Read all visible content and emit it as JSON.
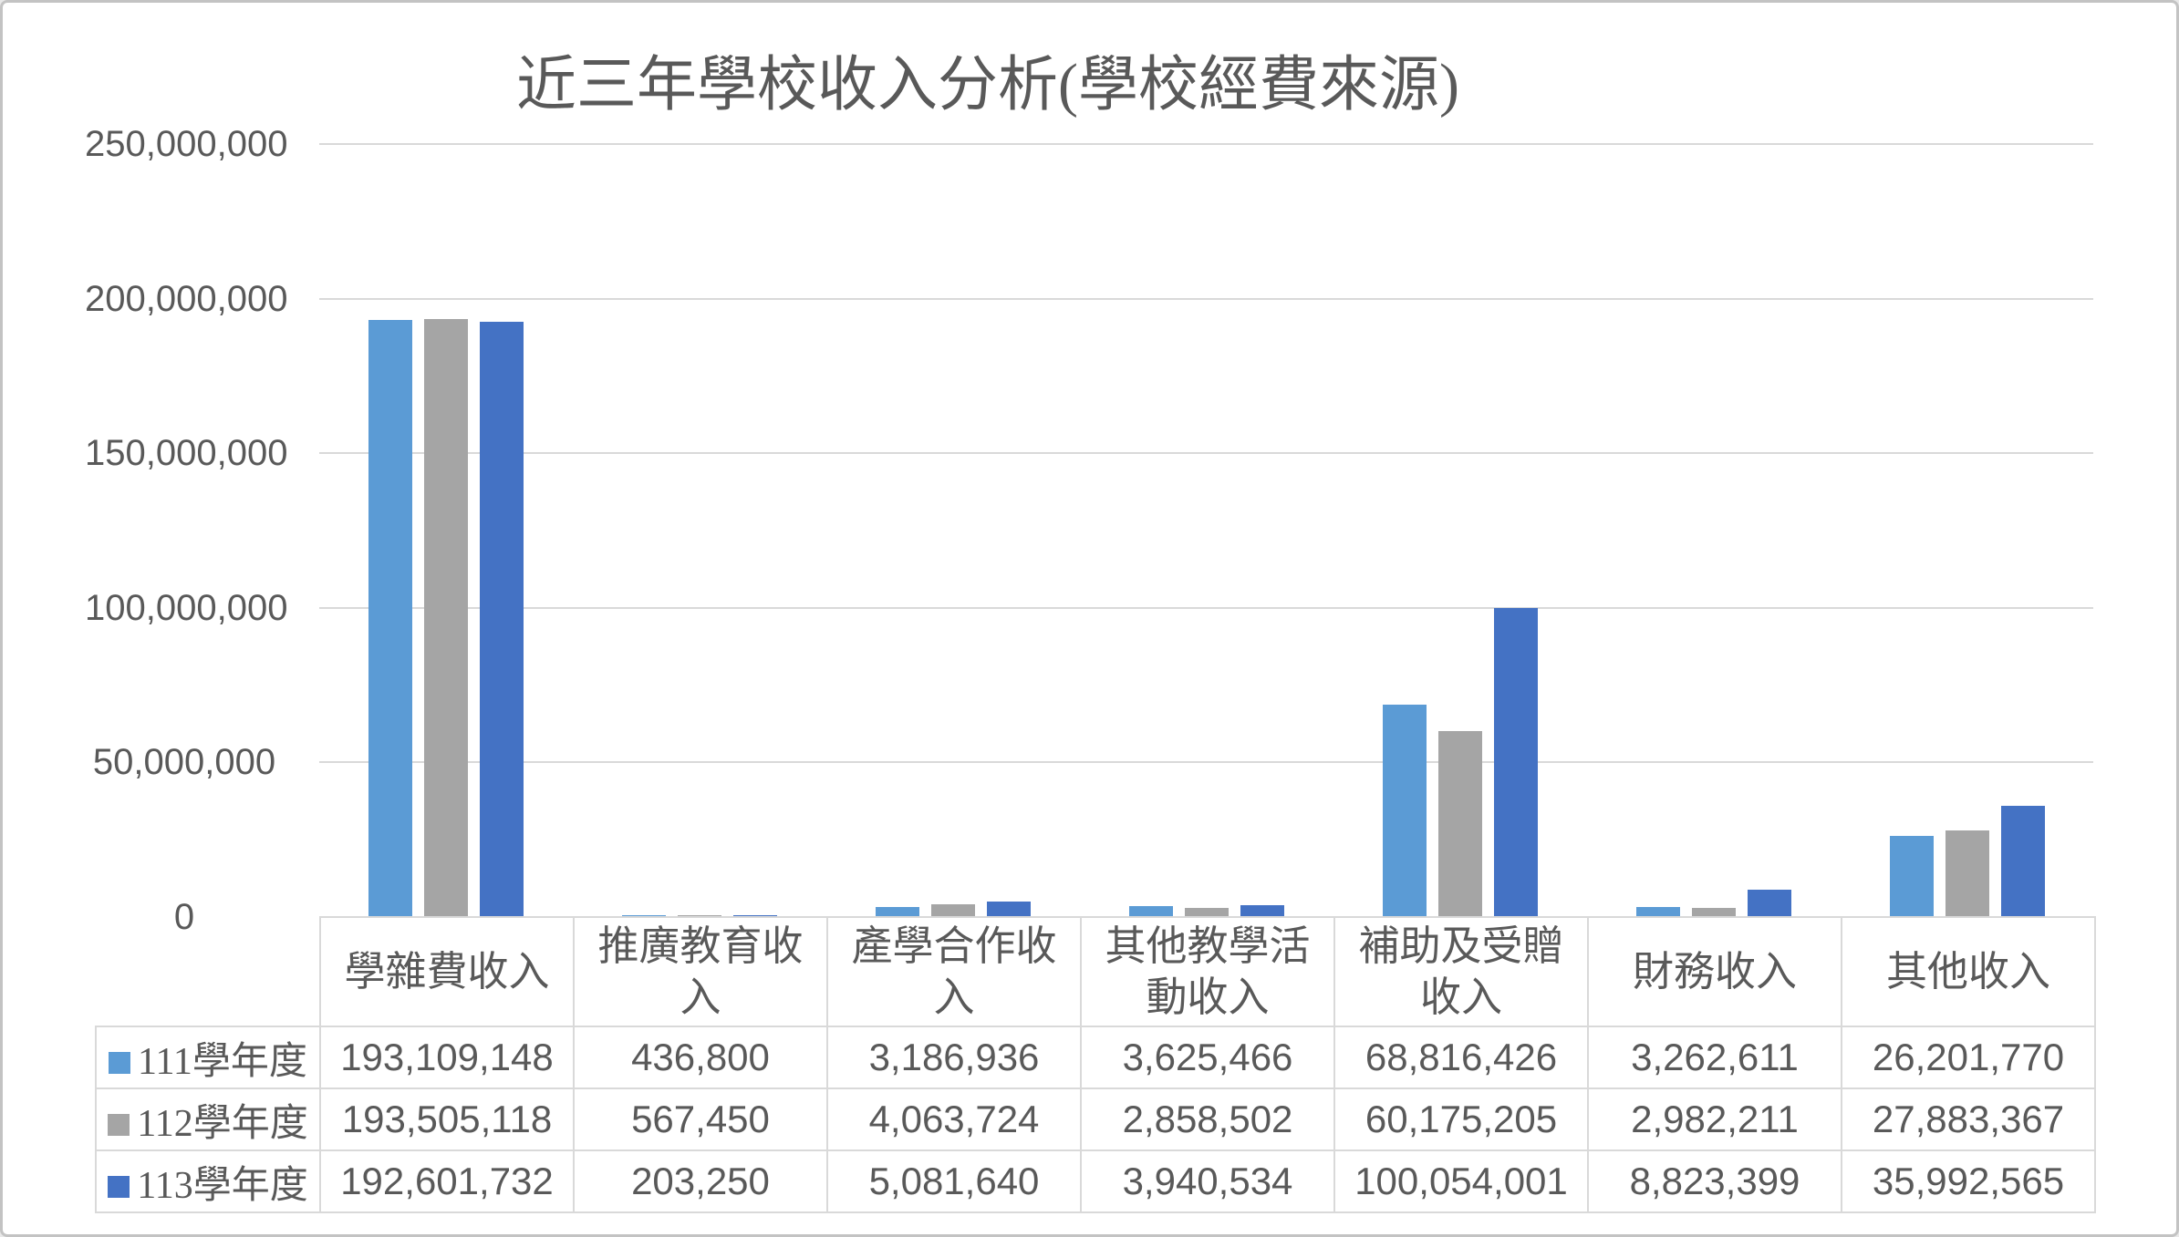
{
  "chart": {
    "title": "近三年學校收入分析(學校經費來源)",
    "colors": {
      "text": "#595959",
      "gridline": "#d9d9d9",
      "table_border": "#d9d9d9"
    },
    "chart_data": {
      "type": "bar",
      "title": "近三年學校收入分析(學校經費來源)",
      "categories": [
        "學雜費收入",
        "推廣教育收入",
        "產學合作收入",
        "其他教學活動收入",
        "補助及受贈收入",
        "財務收入",
        "其他收入"
      ],
      "series": [
        {
          "name": "111學年度",
          "color": "#5B9BD5",
          "values": [
            193109148,
            436800,
            3186936,
            3625466,
            68816426,
            3262611,
            26201770
          ]
        },
        {
          "name": "112學年度",
          "color": "#A5A5A5",
          "values": [
            193505118,
            567450,
            4063724,
            2858502,
            60175205,
            2982211,
            27883367
          ]
        },
        {
          "name": "113學年度",
          "color": "#4472C4",
          "values": [
            192601732,
            203250,
            5081640,
            3940534,
            100054001,
            8823399,
            35992565
          ]
        }
      ],
      "xlabel": "",
      "ylabel": "",
      "ylim": [
        0,
        250000000
      ],
      "y_tick_step": 50000000,
      "y_tick_labels": [
        "0",
        "50,000,000",
        "100,000,000",
        "150,000,000",
        "200,000,000",
        "250,000,000"
      ],
      "grid": true,
      "legend_position": "data-table-left"
    },
    "table": {
      "column_headers": [
        "學雜費收入",
        "推廣教育收入",
        "產學合作收入",
        "其他教學活動收入",
        "補助及受贈收入",
        "財務收入",
        "其他收入"
      ],
      "rows": [
        {
          "label": "111學年度",
          "cells": [
            "193,109,148",
            "436,800",
            "3,186,936",
            "3,625,466",
            "68,816,426",
            "3,262,611",
            "26,201,770"
          ]
        },
        {
          "label": "112學年度",
          "cells": [
            "193,505,118",
            "567,450",
            "4,063,724",
            "2,858,502",
            "60,175,205",
            "2,982,211",
            "27,883,367"
          ]
        },
        {
          "label": "113學年度",
          "cells": [
            "192,601,732",
            "203,250",
            "5,081,640",
            "3,940,534",
            "100,054,001",
            "8,823,399",
            "35,992,565"
          ]
        }
      ]
    }
  }
}
